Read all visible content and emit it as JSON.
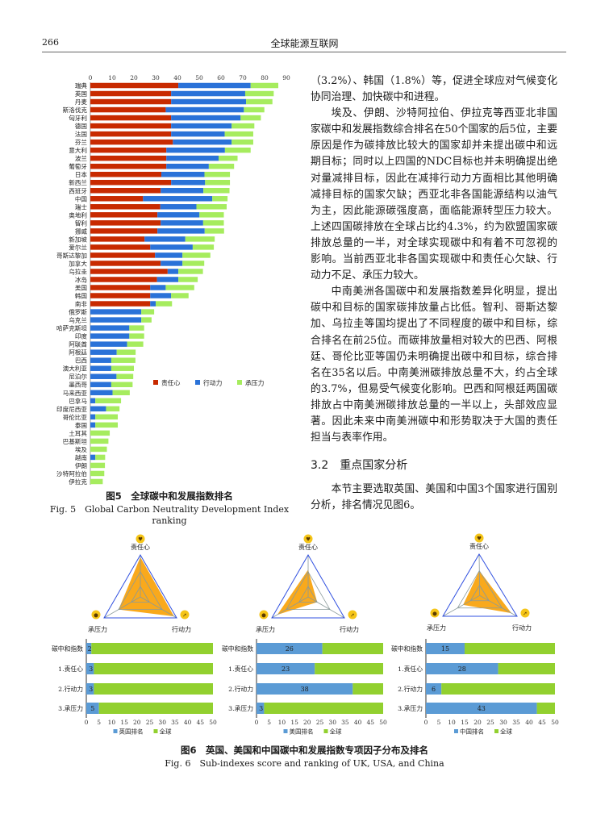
{
  "header": {
    "page_number": "266",
    "journal": "全球能源互联网"
  },
  "figure5": {
    "caption_zh": "图5　全球碳中和发展指数排名",
    "caption_en": "Fig. 5　Global Carbon Neutrality Development Index ranking",
    "chart_data": {
      "type": "bar",
      "orientation": "horizontal",
      "stacked": true,
      "xlim": [
        0,
        90
      ],
      "xticks": [
        "0",
        "10",
        "20",
        "30",
        "40",
        "50",
        "60",
        "70",
        "80",
        "90"
      ],
      "legend_position": "center-right",
      "categories": [
        "瑞典",
        "英国",
        "丹麦",
        "斯洛伐克",
        "匈牙利",
        "德国",
        "法国",
        "芬兰",
        "意大利",
        "波兰",
        "葡萄牙",
        "日本",
        "新西兰",
        "西班牙",
        "中国",
        "瑞士",
        "奥地利",
        "智利",
        "挪威",
        "新加坡",
        "爱尔兰",
        "哥斯达黎加",
        "加拿大",
        "乌拉圭",
        "冰岛",
        "美国",
        "韩国",
        "南非",
        "俄罗斯",
        "乌克兰",
        "哈萨克斯坦",
        "印度",
        "阿联酋",
        "阿根廷",
        "巴西",
        "澳大利亚",
        "尼泊尔",
        "墨西哥",
        "马来西亚",
        "巴拿马",
        "印度尼西亚",
        "哥伦比亚",
        "泰国",
        "土耳其",
        "巴基斯坦",
        "埃及",
        "越南",
        "伊朗",
        "沙特阿拉伯",
        "伊拉克"
      ],
      "series": [
        {
          "name": "责任心",
          "color": "#c82a00",
          "values": [
            40.4,
            37.1,
            37.1,
            34.6,
            37.1,
            37.1,
            37.1,
            37.9,
            34.9,
            34.9,
            34.9,
            32.6,
            37.1,
            32.3,
            24.2,
            32.1,
            30.8,
            32.3,
            30.8,
            24.9,
            27.5,
            29.7,
            32.3,
            35.5,
            30.6,
            27.5,
            27.5,
            27.5,
            0,
            0,
            0,
            0,
            0,
            0,
            0,
            0,
            0,
            0,
            0,
            0,
            0,
            0,
            0,
            0,
            0,
            0,
            0,
            0,
            0,
            0
          ]
        },
        {
          "name": "行动力",
          "color": "#2a72d8",
          "values": [
            33.2,
            34.0,
            34.4,
            35.9,
            31.9,
            27.8,
            24.6,
            27.0,
            26.9,
            24.0,
            19.5,
            19.8,
            15.6,
            19.6,
            31.8,
            16.6,
            19.3,
            19.5,
            21.7,
            18.7,
            19.5,
            12.6,
            10.0,
            4.9,
            9.8,
            7.1,
            9.6,
            2.5,
            23.4,
            23.4,
            17.9,
            17.9,
            16.9,
            12.1,
            9.6,
            9.6,
            12.0,
            9.6,
            10.2,
            2.3,
            7.2,
            2.3,
            2.3,
            0,
            0,
            0,
            2.3,
            0,
            0,
            0
          ]
        },
        {
          "name": "承压力",
          "color": "#a6ec5e",
          "values": [
            12.7,
            13.1,
            12.1,
            9.4,
            9.3,
            10.4,
            13.1,
            9.9,
            11.8,
            8.7,
            11.6,
            11.7,
            11.4,
            12.0,
            7.0,
            13.9,
            11.2,
            9.5,
            8.9,
            13.5,
            9.7,
            12.8,
            10.0,
            11.3,
            8.9,
            13.1,
            8.0,
            7.5,
            5.9,
            4.7,
            6.8,
            6.8,
            7.4,
            8.7,
            11.1,
            10.4,
            7.7,
            9.8,
            7.9,
            11.8,
            6.2,
            10.3,
            10.3,
            8.9,
            8.3,
            7.6,
            4.5,
            6.7,
            6.4,
            5.7
          ]
        }
      ]
    }
  },
  "text": {
    "paragraphs": [
      {
        "indent": false,
        "text": "（3.2%）、韩国（1.8%）等，促进全球应对气候变化协同治理、加快碳中和进程。"
      },
      {
        "indent": true,
        "text": "埃及、伊朗、沙特阿拉伯、伊拉克等西亚北非国家碳中和发展指数综合排名在50个国家的后5位，主要原因是作为碳排放比较大的国家却并未提出碳中和远期目标；同时以上四国的NDC目标也并未明确提出绝对量减排目标，因此在减排行动力方面相比其他明确减排目标的国家欠缺；西亚北非各国能源结构以油气为主，因此能源碳强度高，面临能源转型压力较大。上述四国碳排放在全球占比约4.3%，约为欧盟国家碳排放总量的一半，对全球实现碳中和有着不可忽视的影响。当前西亚北非各国实现碳中和责任心欠缺、行动力不足、承压力较大。"
      },
      {
        "indent": true,
        "text": "中南美洲各国碳中和发展指数差异化明显，提出碳中和目标的国家碳排放量占比低。智利、哥斯达黎加、乌拉圭等国均提出了不同程度的碳中和目标，综合排名在前25位。而碳排放量相对较大的巴西、阿根廷、哥伦比亚等国仍未明确提出碳中和目标，综合排名在35名以后。中南美洲碳排放总量不大，约占全球的3.7%，但易受气候变化影响。巴西和阿根廷两国碳排放占中南美洲碳排放总量的一半以上，头部效应显著。因此未来中南美洲碳中和形势取决于大国的责任担当与表率作用。"
      }
    ],
    "section": {
      "number": "3.2",
      "title": "重点国家分析"
    },
    "section_paragraph": "本节主要选取英国、美国和中国3个国家进行国别分析，排名情况见图6。"
  },
  "figure6": {
    "caption_zh": "图6　英国、美国和中国碳中和发展指数专项因子分布及排名",
    "caption_en": "Fig. 6　Sub-indexes score and ranking of UK, USA, and China",
    "radar_axes": [
      "责任心",
      "行动力",
      "承压力"
    ],
    "radar_icons": [
      "heart-hands-icon",
      "running-icon",
      "weight-icon"
    ],
    "colors": {
      "rank": "#5b9bd5",
      "global": "#92d02f",
      "radar_fill": "#f9a91c",
      "radar_outline": "#3050e0",
      "icon_bg": "#f5c518"
    },
    "chart_data": [
      {
        "type": "bar",
        "stacked": true,
        "orientation": "horizontal",
        "xlim": [
          0,
          50
        ],
        "xticks": [
          "0",
          "5",
          "10",
          "15",
          "20",
          "25",
          "30",
          "35",
          "40",
          "45",
          "50"
        ],
        "categories": [
          "碳中和指数",
          "1.责任心",
          "2.行动力",
          "3.承压力"
        ],
        "series": [
          {
            "name": "英国排名",
            "values": [
              2,
              3,
              3,
              5
            ]
          },
          {
            "name": "全球",
            "values": [
              48,
              47,
              47,
              45
            ]
          }
        ],
        "radar_scores": {
          "责任心": 0.95,
          "行动力": 0.93,
          "承压力": 0.6
        }
      },
      {
        "type": "bar",
        "stacked": true,
        "orientation": "horizontal",
        "xlim": [
          0,
          50
        ],
        "xticks": [
          "0",
          "5",
          "10",
          "15",
          "20",
          "25",
          "30",
          "35",
          "40",
          "45",
          "50"
        ],
        "categories": [
          "碳中和指数",
          "1.责任心",
          "2.行动力",
          "3.承压力"
        ],
        "series": [
          {
            "name": "美国排名",
            "values": [
              26,
              23,
              38,
              3
            ]
          },
          {
            "name": "全球",
            "values": [
              24,
              27,
              12,
              47
            ]
          }
        ],
        "radar_scores": {
          "责任心": 0.65,
          "行动力": 0.25,
          "承压力": 0.85
        }
      },
      {
        "type": "bar",
        "stacked": true,
        "orientation": "horizontal",
        "xlim": [
          0,
          50
        ],
        "xticks": [
          "0",
          "5",
          "10",
          "15",
          "20",
          "25",
          "30",
          "35",
          "40",
          "45",
          "50"
        ],
        "categories": [
          "碳中和指数",
          "1.责任心",
          "2.行动力",
          "3.承压力"
        ],
        "series": [
          {
            "name": "中国排名",
            "values": [
              15,
              28,
              6,
              43
            ]
          },
          {
            "name": "全球",
            "values": [
              35,
              22,
              44,
              7
            ]
          }
        ],
        "radar_scores": {
          "责任心": 0.6,
          "行动力": 0.85,
          "承压力": 0.45
        }
      }
    ]
  }
}
